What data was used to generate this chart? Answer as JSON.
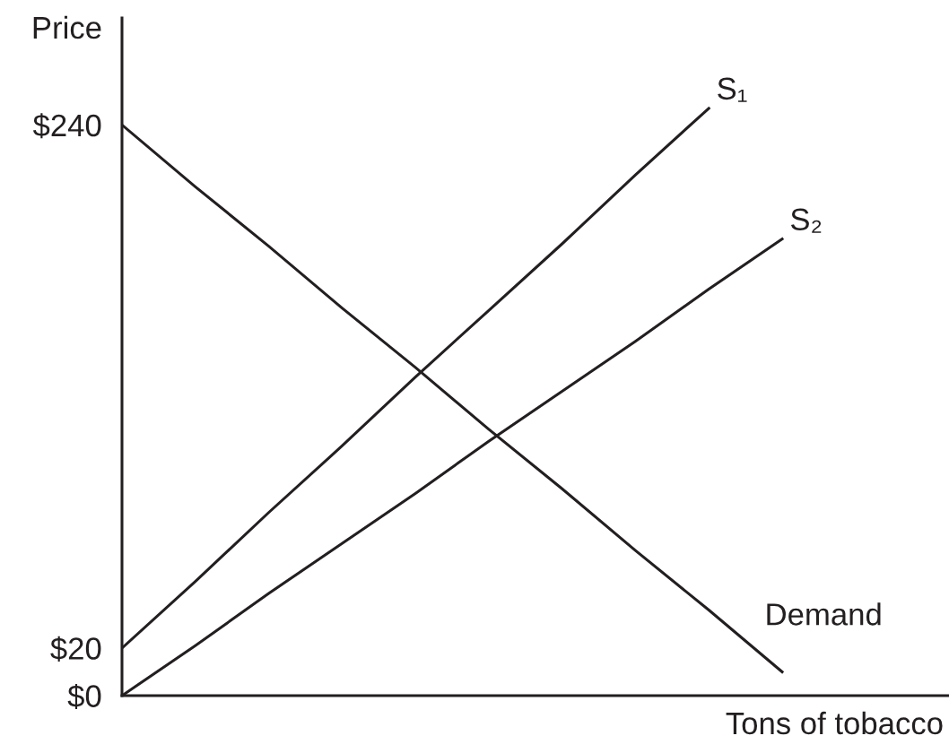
{
  "chart_data": {
    "type": "line",
    "xlabel": "Tons of tobacco",
    "ylabel": "Price",
    "categories": [
      null,
      null,
      null,
      null,
      null,
      null,
      null,
      null,
      null,
      null
    ],
    "series": [
      {
        "name": "Demand",
        "color": "#231f20",
        "values": [
          240,
          214,
          189,
          163,
          138,
          112,
          87,
          61,
          36,
          10
        ]
      },
      {
        "name": "S₁",
        "color": "#231f20",
        "values": [
          20,
          48,
          77,
          105,
          134,
          162,
          190,
          219,
          247,
          null
        ]
      },
      {
        "name": "S₂",
        "color": "#231f20",
        "values": [
          0,
          21,
          43,
          64,
          85,
          107,
          128,
          149,
          171,
          192
        ]
      }
    ],
    "ylim": [
      0,
      285
    ],
    "yticks": [
      {
        "value": 0,
        "label": "$0"
      },
      {
        "value": 20,
        "label": "$20"
      },
      {
        "value": 240,
        "label": "$240"
      }
    ],
    "tick_labels": "y",
    "grid": false,
    "legend": false,
    "marker": "none",
    "line_style": "solid"
  }
}
